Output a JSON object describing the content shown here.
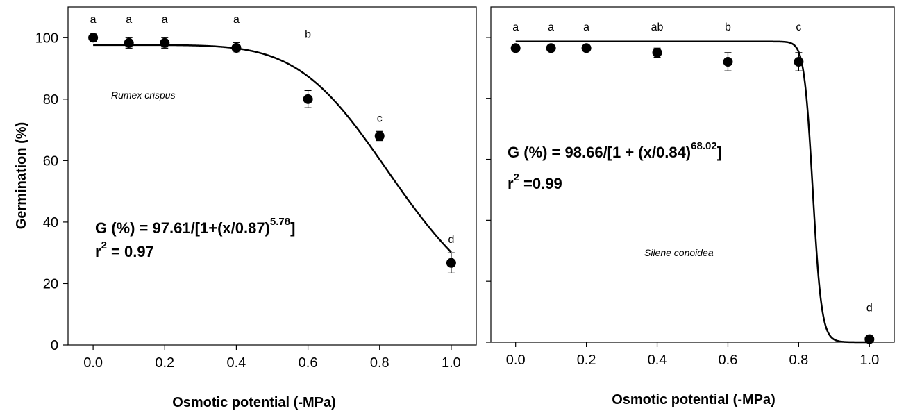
{
  "chart_data": [
    {
      "type": "scatter",
      "species": "Rumex crispus",
      "x": [
        0.0,
        0.1,
        0.2,
        0.4,
        0.6,
        0.8,
        1.0
      ],
      "y": [
        100,
        98.3,
        98.3,
        96.7,
        80,
        68,
        26.7
      ],
      "error": [
        1.2,
        1.7,
        1.7,
        1.7,
        2.8,
        1.5,
        3.3
      ],
      "letters": [
        "a",
        "a",
        "a",
        "a",
        "b",
        "c",
        "d"
      ],
      "fit": {
        "a": 97.61,
        "x50": 0.87,
        "b": 5.78
      },
      "equation": {
        "main": "G (%) = 97.61/[1+(x/0.87)",
        "exp": "5.78",
        "close": "]"
      },
      "r2": {
        "r": "r",
        "sup": "2",
        "value": " = 0.97"
      },
      "xlabel": "Osmotic potential (-MPa)",
      "ylabel": "Germination (%)",
      "xlim": [
        -0.07,
        1.07
      ],
      "ylim": [
        0,
        110
      ],
      "xticks": [
        "0.0",
        "0.2",
        "0.4",
        "0.6",
        "0.8",
        "1.0"
      ],
      "yticks": [
        "0",
        "20",
        "40",
        "60",
        "80",
        "100"
      ]
    },
    {
      "type": "scatter",
      "species": "Silene conoidea",
      "x": [
        0.0,
        0.1,
        0.2,
        0.4,
        0.6,
        0.8,
        1.0
      ],
      "y": [
        96.5,
        96.5,
        96.5,
        95,
        92,
        92,
        1
      ],
      "error": [
        0.8,
        0.8,
        0.8,
        1.5,
        3,
        3,
        0.5
      ],
      "letters": [
        "a",
        "a",
        "a",
        "ab",
        "b",
        "c",
        "d"
      ],
      "fit": {
        "a": 98.66,
        "x50": 0.84,
        "b": 68.02
      },
      "equation": {
        "main": "G (%) = 98.66/[1 + (x/0.84)",
        "exp": "68.02",
        "close": "]"
      },
      "r2": {
        "r": "r",
        "sup": "2",
        "value": " =0.99"
      },
      "xlabel": "Osmotic potential (-MPa)",
      "ylabel": "",
      "xlim": [
        -0.07,
        1.07
      ],
      "ylim": [
        0,
        110
      ],
      "xticks": [
        "0.0",
        "0.2",
        "0.4",
        "0.6",
        "0.8",
        "1.0"
      ],
      "yticks": [
        "",
        "",
        "",
        "",
        "",
        ""
      ]
    }
  ]
}
